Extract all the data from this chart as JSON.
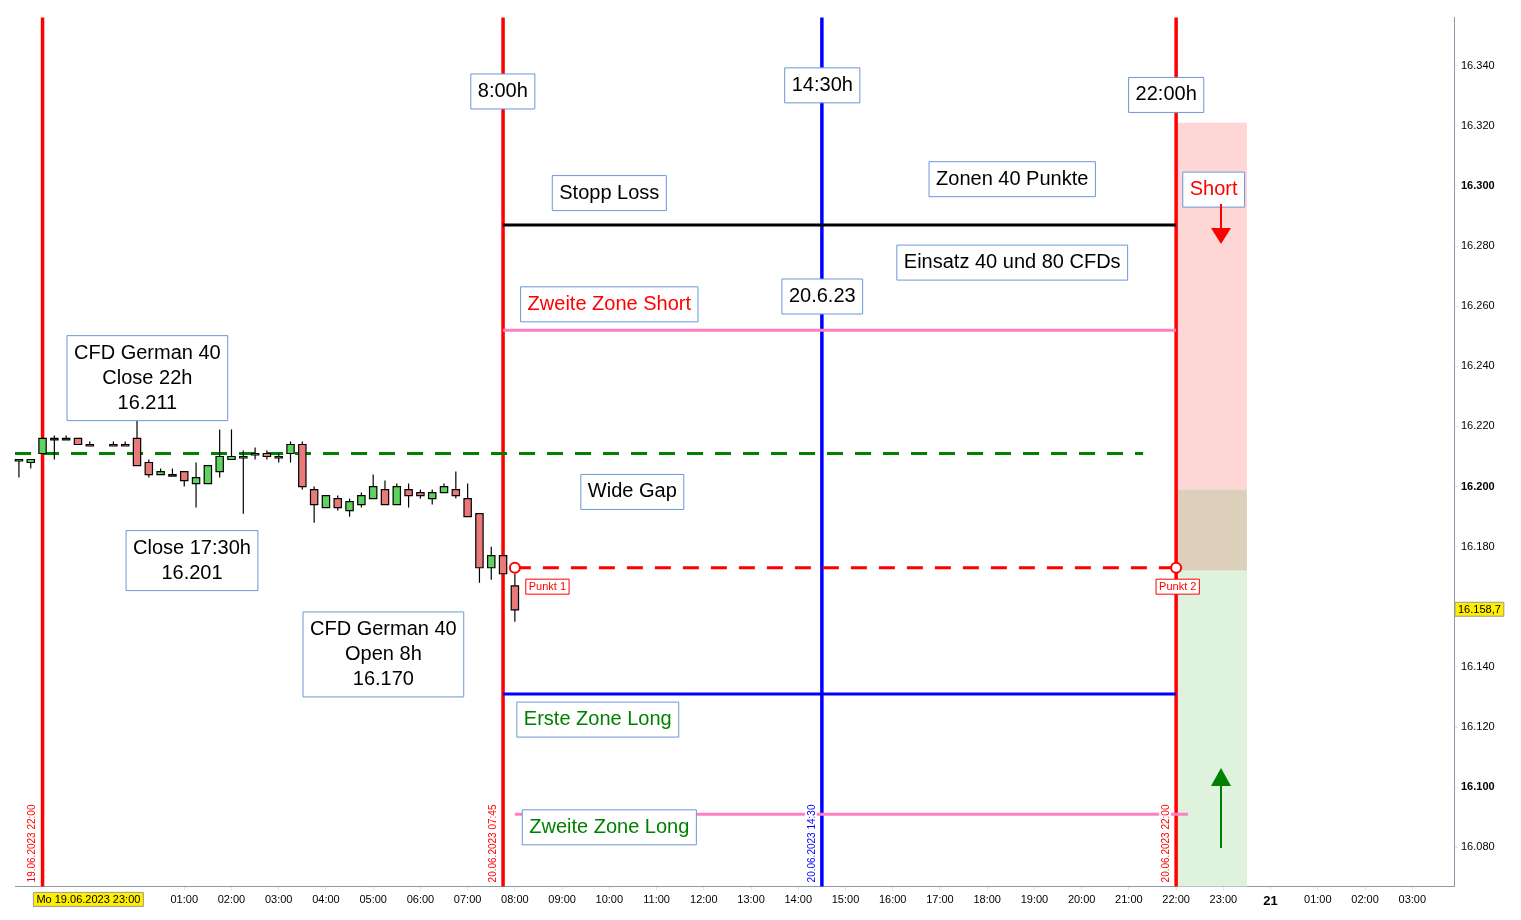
{
  "chart_data": {
    "type": "candlestick",
    "x": [
      "2023-06-19T21:30",
      "2023-06-19T21:45",
      "2023-06-19T22:00",
      "2023-06-19T22:15",
      "2023-06-19T22:30",
      "2023-06-19T22:45",
      "2023-06-19T23:00",
      "2023-06-19T23:30",
      "2023-06-19T23:45",
      "2023-06-20T00:00",
      "2023-06-20T00:15",
      "2023-06-20T00:30",
      "2023-06-20T00:45",
      "2023-06-20T01:00",
      "2023-06-20T01:15",
      "2023-06-20T01:30",
      "2023-06-20T01:45",
      "2023-06-20T02:00",
      "2023-06-20T02:15",
      "2023-06-20T02:30",
      "2023-06-20T02:45",
      "2023-06-20T03:00",
      "2023-06-20T03:15",
      "2023-06-20T03:30",
      "2023-06-20T03:45",
      "2023-06-20T04:00",
      "2023-06-20T04:15",
      "2023-06-20T04:30",
      "2023-06-20T04:45",
      "2023-06-20T05:00",
      "2023-06-20T05:15",
      "2023-06-20T05:30",
      "2023-06-20T05:45",
      "2023-06-20T06:00",
      "2023-06-20T06:15",
      "2023-06-20T06:30",
      "2023-06-20T06:45",
      "2023-06-20T07:00",
      "2023-06-20T07:15",
      "2023-06-20T07:30",
      "2023-06-20T07:45",
      "2023-06-20T08:00"
    ],
    "ohlc": [
      [
        16209,
        16209,
        16203,
        16209
      ],
      [
        16208,
        16209,
        16206,
        16209
      ],
      [
        16211,
        16216,
        16211,
        16216
      ],
      [
        16216,
        16217,
        16209,
        16216
      ],
      [
        16216,
        16217,
        16216,
        16216
      ],
      [
        16216,
        16216,
        16214,
        16214
      ],
      [
        16214,
        16215,
        16214,
        16214
      ],
      [
        16214,
        16215,
        16214,
        16214
      ],
      [
        16214,
        16215,
        16214,
        16214
      ],
      [
        16216,
        16222,
        16207,
        16207
      ],
      [
        16208,
        16209,
        16203,
        16204
      ],
      [
        16204,
        16206,
        16204,
        16205
      ],
      [
        16204,
        16206,
        16204,
        16204
      ],
      [
        16205,
        16205,
        16200,
        16202
      ],
      [
        16201,
        16208,
        16193,
        16203
      ],
      [
        16201,
        16207,
        16201,
        16207
      ],
      [
        16205,
        16219,
        16203,
        16210
      ],
      [
        16209,
        16219,
        16209,
        16210
      ],
      [
        16210,
        16212,
        16191,
        16210
      ],
      [
        16211,
        16213,
        16209,
        16211
      ],
      [
        16211,
        16212,
        16209,
        16210
      ],
      [
        16210,
        16211,
        16208,
        16210
      ],
      [
        16211,
        16215,
        16208,
        16214
      ],
      [
        16214,
        16215,
        16199,
        16200
      ],
      [
        16199,
        16200,
        16188,
        16194
      ],
      [
        16193,
        16197,
        16193,
        16197
      ],
      [
        16196,
        16197,
        16192,
        16193
      ],
      [
        16192,
        16196,
        16190,
        16195
      ],
      [
        16194,
        16198,
        16193,
        16197
      ],
      [
        16196,
        16204,
        16196,
        16200
      ],
      [
        16199,
        16202,
        16194,
        16194
      ],
      [
        16194,
        16201,
        16194,
        16200
      ],
      [
        16199,
        16201,
        16193,
        16197
      ],
      [
        16198,
        16199,
        16196,
        16197
      ],
      [
        16196,
        16199,
        16194,
        16198
      ],
      [
        16198,
        16201,
        16198,
        16200
      ],
      [
        16199,
        16205,
        16196,
        16197
      ],
      [
        16196,
        16201,
        16190,
        16190
      ],
      [
        16191,
        16191,
        16168,
        16173
      ],
      [
        16173,
        16180,
        16169,
        16177
      ],
      [
        16177,
        16177,
        16171,
        16171
      ],
      [
        16167,
        16171,
        16155,
        16159
      ]
    ],
    "colors": [
      "#5fd35f",
      "#5fd35f",
      "#5fd35f",
      "#5fd35f",
      "#5fd35f",
      "#e87a7a",
      "#e87a7a",
      "#e87a7a",
      "#e87a7a",
      "#e87a7a",
      "#e87a7a",
      "#5fd35f",
      "#5fd35f",
      "#e87a7a",
      "#5fd35f",
      "#5fd35f",
      "#5fd35f",
      "#5fd35f",
      "#5fd35f",
      "#5fd35f",
      "#e87a7a",
      "#5fd35f",
      "#5fd35f",
      "#e87a7a",
      "#e87a7a",
      "#5fd35f",
      "#e87a7a",
      "#5fd35f",
      "#5fd35f",
      "#5fd35f",
      "#e87a7a",
      "#5fd35f",
      "#e87a7a",
      "#e87a7a",
      "#5fd35f",
      "#5fd35f",
      "#e87a7a",
      "#e87a7a",
      "#e87a7a",
      "#5fd35f",
      "#e87a7a",
      "#e87a7a"
    ],
    "series": [
      {
        "type": "line",
        "x": [
          "2023-06-19T21:25",
          "2023-06-20T21:18"
        ],
        "values": [
          16211,
          16211
        ],
        "color": "#008000",
        "line_style": "dashed"
      },
      {
        "type": "line",
        "x": [
          "2023-06-20T07:45",
          "2023-06-20T22:00"
        ],
        "values": [
          16287,
          16287
        ],
        "color": "#000000",
        "line_style": "solid"
      },
      {
        "type": "line",
        "x": [
          "2023-06-20T07:45",
          "2023-06-20T22:00"
        ],
        "values": [
          16252,
          16252
        ],
        "color": "#ff80c0",
        "line_style": "solid"
      },
      {
        "type": "line",
        "x": [
          "2023-06-20T07:45",
          "2023-06-20T22:00"
        ],
        "values": [
          16131,
          16131
        ],
        "color": "#0000ff",
        "line_style": "solid"
      },
      {
        "type": "line",
        "x": [
          "2023-06-20T08:00",
          "2023-06-20T22:15"
        ],
        "values": [
          16091,
          16091
        ],
        "color": "#ff80c0",
        "line_style": "solid"
      },
      {
        "type": "line",
        "x": [
          "2023-06-20T08:00",
          "2023-06-20T22:00"
        ],
        "values": [
          16173,
          16173
        ],
        "color": "#ff0000",
        "line_style": "dashed",
        "marker": "circle"
      },
      {
        "type": "bar",
        "x": [
          "2023-06-20T22:45"
        ],
        "base": [
          16199
        ],
        "values": [
          122
        ],
        "color": "#ffd6d6"
      },
      {
        "type": "bar",
        "x": [
          "2023-06-20T22:45"
        ],
        "base": [
          16172
        ],
        "values": [
          27
        ],
        "color": "#ddd0bb"
      },
      {
        "type": "bar",
        "x": [
          "2023-06-20T22:45"
        ],
        "base": [
          16067
        ],
        "values": [
          105
        ],
        "color": "#dff2dd"
      }
    ],
    "ref_lines": [
      {
        "axis": "x",
        "value": "2023-06-19T22:00",
        "label": "19.06.2023 22:00",
        "color": "#ff0000"
      },
      {
        "axis": "x",
        "value": "2023-06-20T07:45",
        "label": "20.06.2023 07:45",
        "color": "#ff0000"
      },
      {
        "axis": "x",
        "value": "2023-06-20T14:30",
        "label": "20.06.2023 14:30",
        "color": "#0000ff"
      },
      {
        "axis": "x",
        "value": "2023-06-20T22:00",
        "label": "20.06.2023 22:00",
        "color": "#ff0000"
      }
    ],
    "annotations": [
      "8:00h",
      "14:30h",
      "22:00h",
      "Stopp Loss",
      "Zonen 40 Punkte",
      "Einsatz 40 und 80 CFDs",
      "Zweite Zone Short",
      "20.6.23",
      "CFD German 40\nClose 22h\n16.211",
      "Close 17:30h\n16.201",
      "Wide Gap",
      "CFD German 40\nOpen 8h\n16.170",
      "Erste Zone Long",
      "Zweite Zone Long",
      "Short",
      "Punkt 1",
      "Punkt 2",
      "Mo 19.06.2023 23:00",
      "16.158,7"
    ],
    "xlim": [
      "2023-06-19T21:25",
      "2023-06-21T03:53"
    ],
    "xticks": [
      {
        "value": "2023-06-20T01:00",
        "label": "01:00"
      },
      {
        "value": "2023-06-20T02:00",
        "label": "02:00"
      },
      {
        "value": "2023-06-20T03:00",
        "label": "03:00"
      },
      {
        "value": "2023-06-20T04:00",
        "label": "04:00"
      },
      {
        "value": "2023-06-20T05:00",
        "label": "05:00"
      },
      {
        "value": "2023-06-20T06:00",
        "label": "06:00"
      },
      {
        "value": "2023-06-20T07:00",
        "label": "07:00"
      },
      {
        "value": "2023-06-20T08:00",
        "label": "08:00"
      },
      {
        "value": "2023-06-20T09:00",
        "label": "09:00"
      },
      {
        "value": "2023-06-20T10:00",
        "label": "10:00"
      },
      {
        "value": "2023-06-20T11:00",
        "label": "11:00"
      },
      {
        "value": "2023-06-20T12:00",
        "label": "12:00"
      },
      {
        "value": "2023-06-20T13:00",
        "label": "13:00"
      },
      {
        "value": "2023-06-20T14:00",
        "label": "14:00"
      },
      {
        "value": "2023-06-20T15:00",
        "label": "15:00"
      },
      {
        "value": "2023-06-20T16:00",
        "label": "16:00"
      },
      {
        "value": "2023-06-20T17:00",
        "label": "17:00"
      },
      {
        "value": "2023-06-20T18:00",
        "label": "18:00"
      },
      {
        "value": "2023-06-20T19:00",
        "label": "19:00"
      },
      {
        "value": "2023-06-20T20:00",
        "label": "20:00"
      },
      {
        "value": "2023-06-20T21:00",
        "label": "21:00"
      },
      {
        "value": "2023-06-20T22:00",
        "label": "22:00"
      },
      {
        "value": "2023-06-20T23:00",
        "label": "23:00"
      },
      {
        "value": "2023-06-21T00:00",
        "label": "21"
      },
      {
        "value": "2023-06-21T01:00",
        "label": "01:00"
      },
      {
        "value": "2023-06-21T02:00",
        "label": "02:00"
      },
      {
        "value": "2023-06-21T03:00",
        "label": "03:00"
      }
    ],
    "ylim": [
      16067,
      16356
    ],
    "yticks": [
      {
        "value": 16080,
        "label": "16.080"
      },
      {
        "value": 16100,
        "label": "16.100"
      },
      {
        "value": 16120,
        "label": "16.120"
      },
      {
        "value": 16140,
        "label": "16.140"
      },
      {
        "value": 16180,
        "label": "16.180"
      },
      {
        "value": 16200,
        "label": "16.200"
      },
      {
        "value": 16220,
        "label": "16.220"
      },
      {
        "value": 16240,
        "label": "16.240"
      },
      {
        "value": 16260,
        "label": "16.260"
      },
      {
        "value": 16280,
        "label": "16.280"
      },
      {
        "value": 16300,
        "label": "16.300"
      },
      {
        "value": 16320,
        "label": "16.320"
      },
      {
        "value": 16340,
        "label": "16.340"
      }
    ],
    "grid": false,
    "legend": false
  }
}
